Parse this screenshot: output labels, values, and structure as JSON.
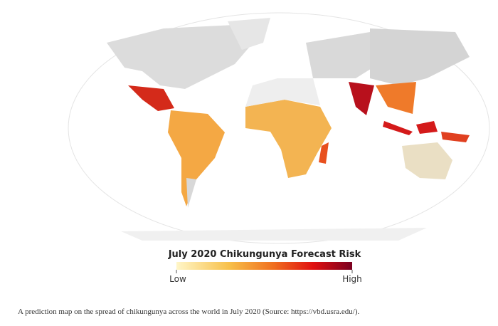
{
  "legend": {
    "title": "July 2020 Chikungunya Forecast Risk",
    "low": "Low",
    "high": "High"
  },
  "caption": "A prediction map on the spread of chikungunya across the world in July 2020 (Source: https://vbd.usra.edu/)."
}
